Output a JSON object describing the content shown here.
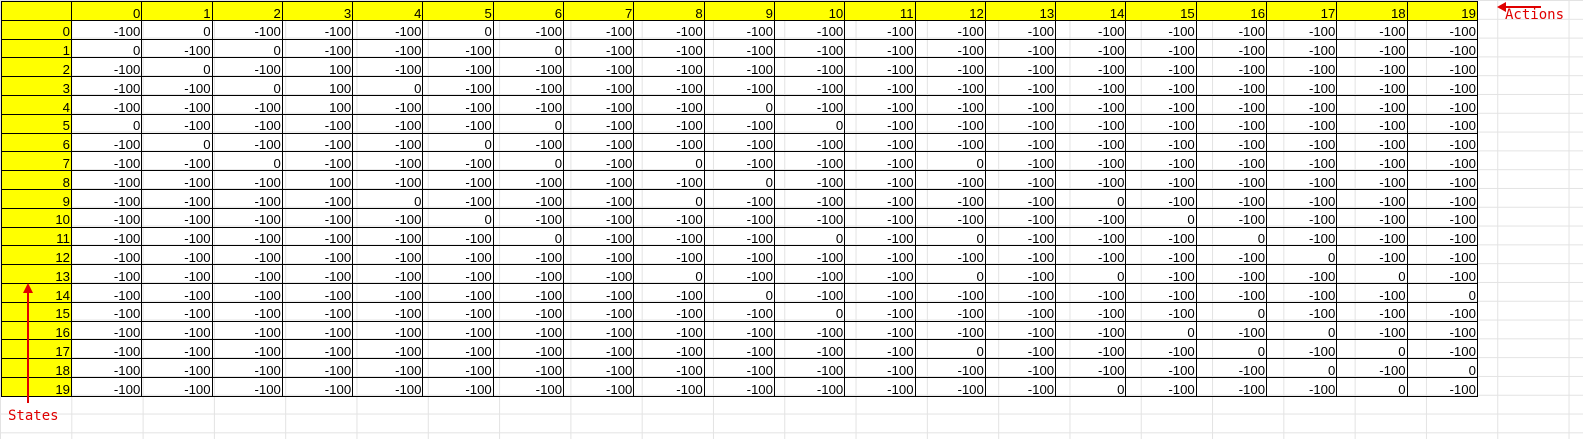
{
  "sheet": {
    "columns": [
      "0",
      "1",
      "2",
      "3",
      "4",
      "5",
      "6",
      "7",
      "8",
      "9",
      "10",
      "11",
      "12",
      "13",
      "14",
      "15",
      "16",
      "17",
      "18",
      "19"
    ],
    "rows": [
      {
        "label": "0",
        "cells": [
          "-100",
          "0",
          "-100",
          "-100",
          "-100",
          "0",
          "-100",
          "-100",
          "-100",
          "-100",
          "-100",
          "-100",
          "-100",
          "-100",
          "-100",
          "-100",
          "-100",
          "-100",
          "-100",
          "-100"
        ]
      },
      {
        "label": "1",
        "cells": [
          "0",
          "-100",
          "0",
          "-100",
          "-100",
          "-100",
          "0",
          "-100",
          "-100",
          "-100",
          "-100",
          "-100",
          "-100",
          "-100",
          "-100",
          "-100",
          "-100",
          "-100",
          "-100",
          "-100"
        ]
      },
      {
        "label": "2",
        "cells": [
          "-100",
          "0",
          "-100",
          "100",
          "-100",
          "-100",
          "-100",
          "-100",
          "-100",
          "-100",
          "-100",
          "-100",
          "-100",
          "-100",
          "-100",
          "-100",
          "-100",
          "-100",
          "-100",
          "-100"
        ]
      },
      {
        "label": "3",
        "cells": [
          "-100",
          "-100",
          "0",
          "100",
          "0",
          "-100",
          "-100",
          "-100",
          "-100",
          "-100",
          "-100",
          "-100",
          "-100",
          "-100",
          "-100",
          "-100",
          "-100",
          "-100",
          "-100",
          "-100"
        ]
      },
      {
        "label": "4",
        "cells": [
          "-100",
          "-100",
          "-100",
          "100",
          "-100",
          "-100",
          "-100",
          "-100",
          "-100",
          "0",
          "-100",
          "-100",
          "-100",
          "-100",
          "-100",
          "-100",
          "-100",
          "-100",
          "-100",
          "-100"
        ]
      },
      {
        "label": "5",
        "cells": [
          "0",
          "-100",
          "-100",
          "-100",
          "-100",
          "-100",
          "0",
          "-100",
          "-100",
          "-100",
          "0",
          "-100",
          "-100",
          "-100",
          "-100",
          "-100",
          "-100",
          "-100",
          "-100",
          "-100"
        ]
      },
      {
        "label": "6",
        "cells": [
          "-100",
          "0",
          "-100",
          "-100",
          "-100",
          "0",
          "-100",
          "-100",
          "-100",
          "-100",
          "-100",
          "-100",
          "-100",
          "-100",
          "-100",
          "-100",
          "-100",
          "-100",
          "-100",
          "-100"
        ]
      },
      {
        "label": "7",
        "cells": [
          "-100",
          "-100",
          "0",
          "-100",
          "-100",
          "-100",
          "0",
          "-100",
          "0",
          "-100",
          "-100",
          "-100",
          "0",
          "-100",
          "-100",
          "-100",
          "-100",
          "-100",
          "-100",
          "-100"
        ]
      },
      {
        "label": "8",
        "cells": [
          "-100",
          "-100",
          "-100",
          "100",
          "-100",
          "-100",
          "-100",
          "-100",
          "-100",
          "0",
          "-100",
          "-100",
          "-100",
          "-100",
          "-100",
          "-100",
          "-100",
          "-100",
          "-100",
          "-100"
        ]
      },
      {
        "label": "9",
        "cells": [
          "-100",
          "-100",
          "-100",
          "-100",
          "0",
          "-100",
          "-100",
          "-100",
          "0",
          "-100",
          "-100",
          "-100",
          "-100",
          "-100",
          "0",
          "-100",
          "-100",
          "-100",
          "-100",
          "-100"
        ]
      },
      {
        "label": "10",
        "cells": [
          "-100",
          "-100",
          "-100",
          "-100",
          "-100",
          "0",
          "-100",
          "-100",
          "-100",
          "-100",
          "-100",
          "-100",
          "-100",
          "-100",
          "-100",
          "0",
          "-100",
          "-100",
          "-100",
          "-100"
        ]
      },
      {
        "label": "11",
        "cells": [
          "-100",
          "-100",
          "-100",
          "-100",
          "-100",
          "-100",
          "0",
          "-100",
          "-100",
          "-100",
          "0",
          "-100",
          "0",
          "-100",
          "-100",
          "-100",
          "0",
          "-100",
          "-100",
          "-100"
        ]
      },
      {
        "label": "12",
        "cells": [
          "-100",
          "-100",
          "-100",
          "-100",
          "-100",
          "-100",
          "-100",
          "-100",
          "-100",
          "-100",
          "-100",
          "-100",
          "-100",
          "-100",
          "-100",
          "-100",
          "-100",
          "0",
          "-100",
          "-100"
        ]
      },
      {
        "label": "13",
        "cells": [
          "-100",
          "-100",
          "-100",
          "-100",
          "-100",
          "-100",
          "-100",
          "-100",
          "0",
          "-100",
          "-100",
          "-100",
          "0",
          "-100",
          "0",
          "-100",
          "-100",
          "-100",
          "0",
          "-100"
        ]
      },
      {
        "label": "14",
        "cells": [
          "-100",
          "-100",
          "-100",
          "-100",
          "-100",
          "-100",
          "-100",
          "-100",
          "-100",
          "0",
          "-100",
          "-100",
          "-100",
          "-100",
          "-100",
          "-100",
          "-100",
          "-100",
          "-100",
          "0"
        ]
      },
      {
        "label": "15",
        "cells": [
          "-100",
          "-100",
          "-100",
          "-100",
          "-100",
          "-100",
          "-100",
          "-100",
          "-100",
          "-100",
          "0",
          "-100",
          "-100",
          "-100",
          "-100",
          "-100",
          "0",
          "-100",
          "-100",
          "-100"
        ]
      },
      {
        "label": "16",
        "cells": [
          "-100",
          "-100",
          "-100",
          "-100",
          "-100",
          "-100",
          "-100",
          "-100",
          "-100",
          "-100",
          "-100",
          "-100",
          "-100",
          "-100",
          "-100",
          "0",
          "-100",
          "0",
          "-100",
          "-100"
        ]
      },
      {
        "label": "17",
        "cells": [
          "-100",
          "-100",
          "-100",
          "-100",
          "-100",
          "-100",
          "-100",
          "-100",
          "-100",
          "-100",
          "-100",
          "-100",
          "0",
          "-100",
          "-100",
          "-100",
          "0",
          "-100",
          "0",
          "-100"
        ]
      },
      {
        "label": "18",
        "cells": [
          "-100",
          "-100",
          "-100",
          "-100",
          "-100",
          "-100",
          "-100",
          "-100",
          "-100",
          "-100",
          "-100",
          "-100",
          "-100",
          "-100",
          "-100",
          "-100",
          "-100",
          "0",
          "-100",
          "0"
        ]
      },
      {
        "label": "19",
        "cells": [
          "-100",
          "-100",
          "-100",
          "-100",
          "-100",
          "-100",
          "-100",
          "-100",
          "-100",
          "-100",
          "-100",
          "-100",
          "-100",
          "-100",
          "0",
          "-100",
          "-100",
          "-100",
          "0",
          "-100"
        ]
      }
    ]
  },
  "annotations": {
    "actions": "Actions",
    "states": "States",
    "color": "#e00000"
  },
  "colors": {
    "header_fill": "#ffff00",
    "cell_border": "#000000"
  }
}
